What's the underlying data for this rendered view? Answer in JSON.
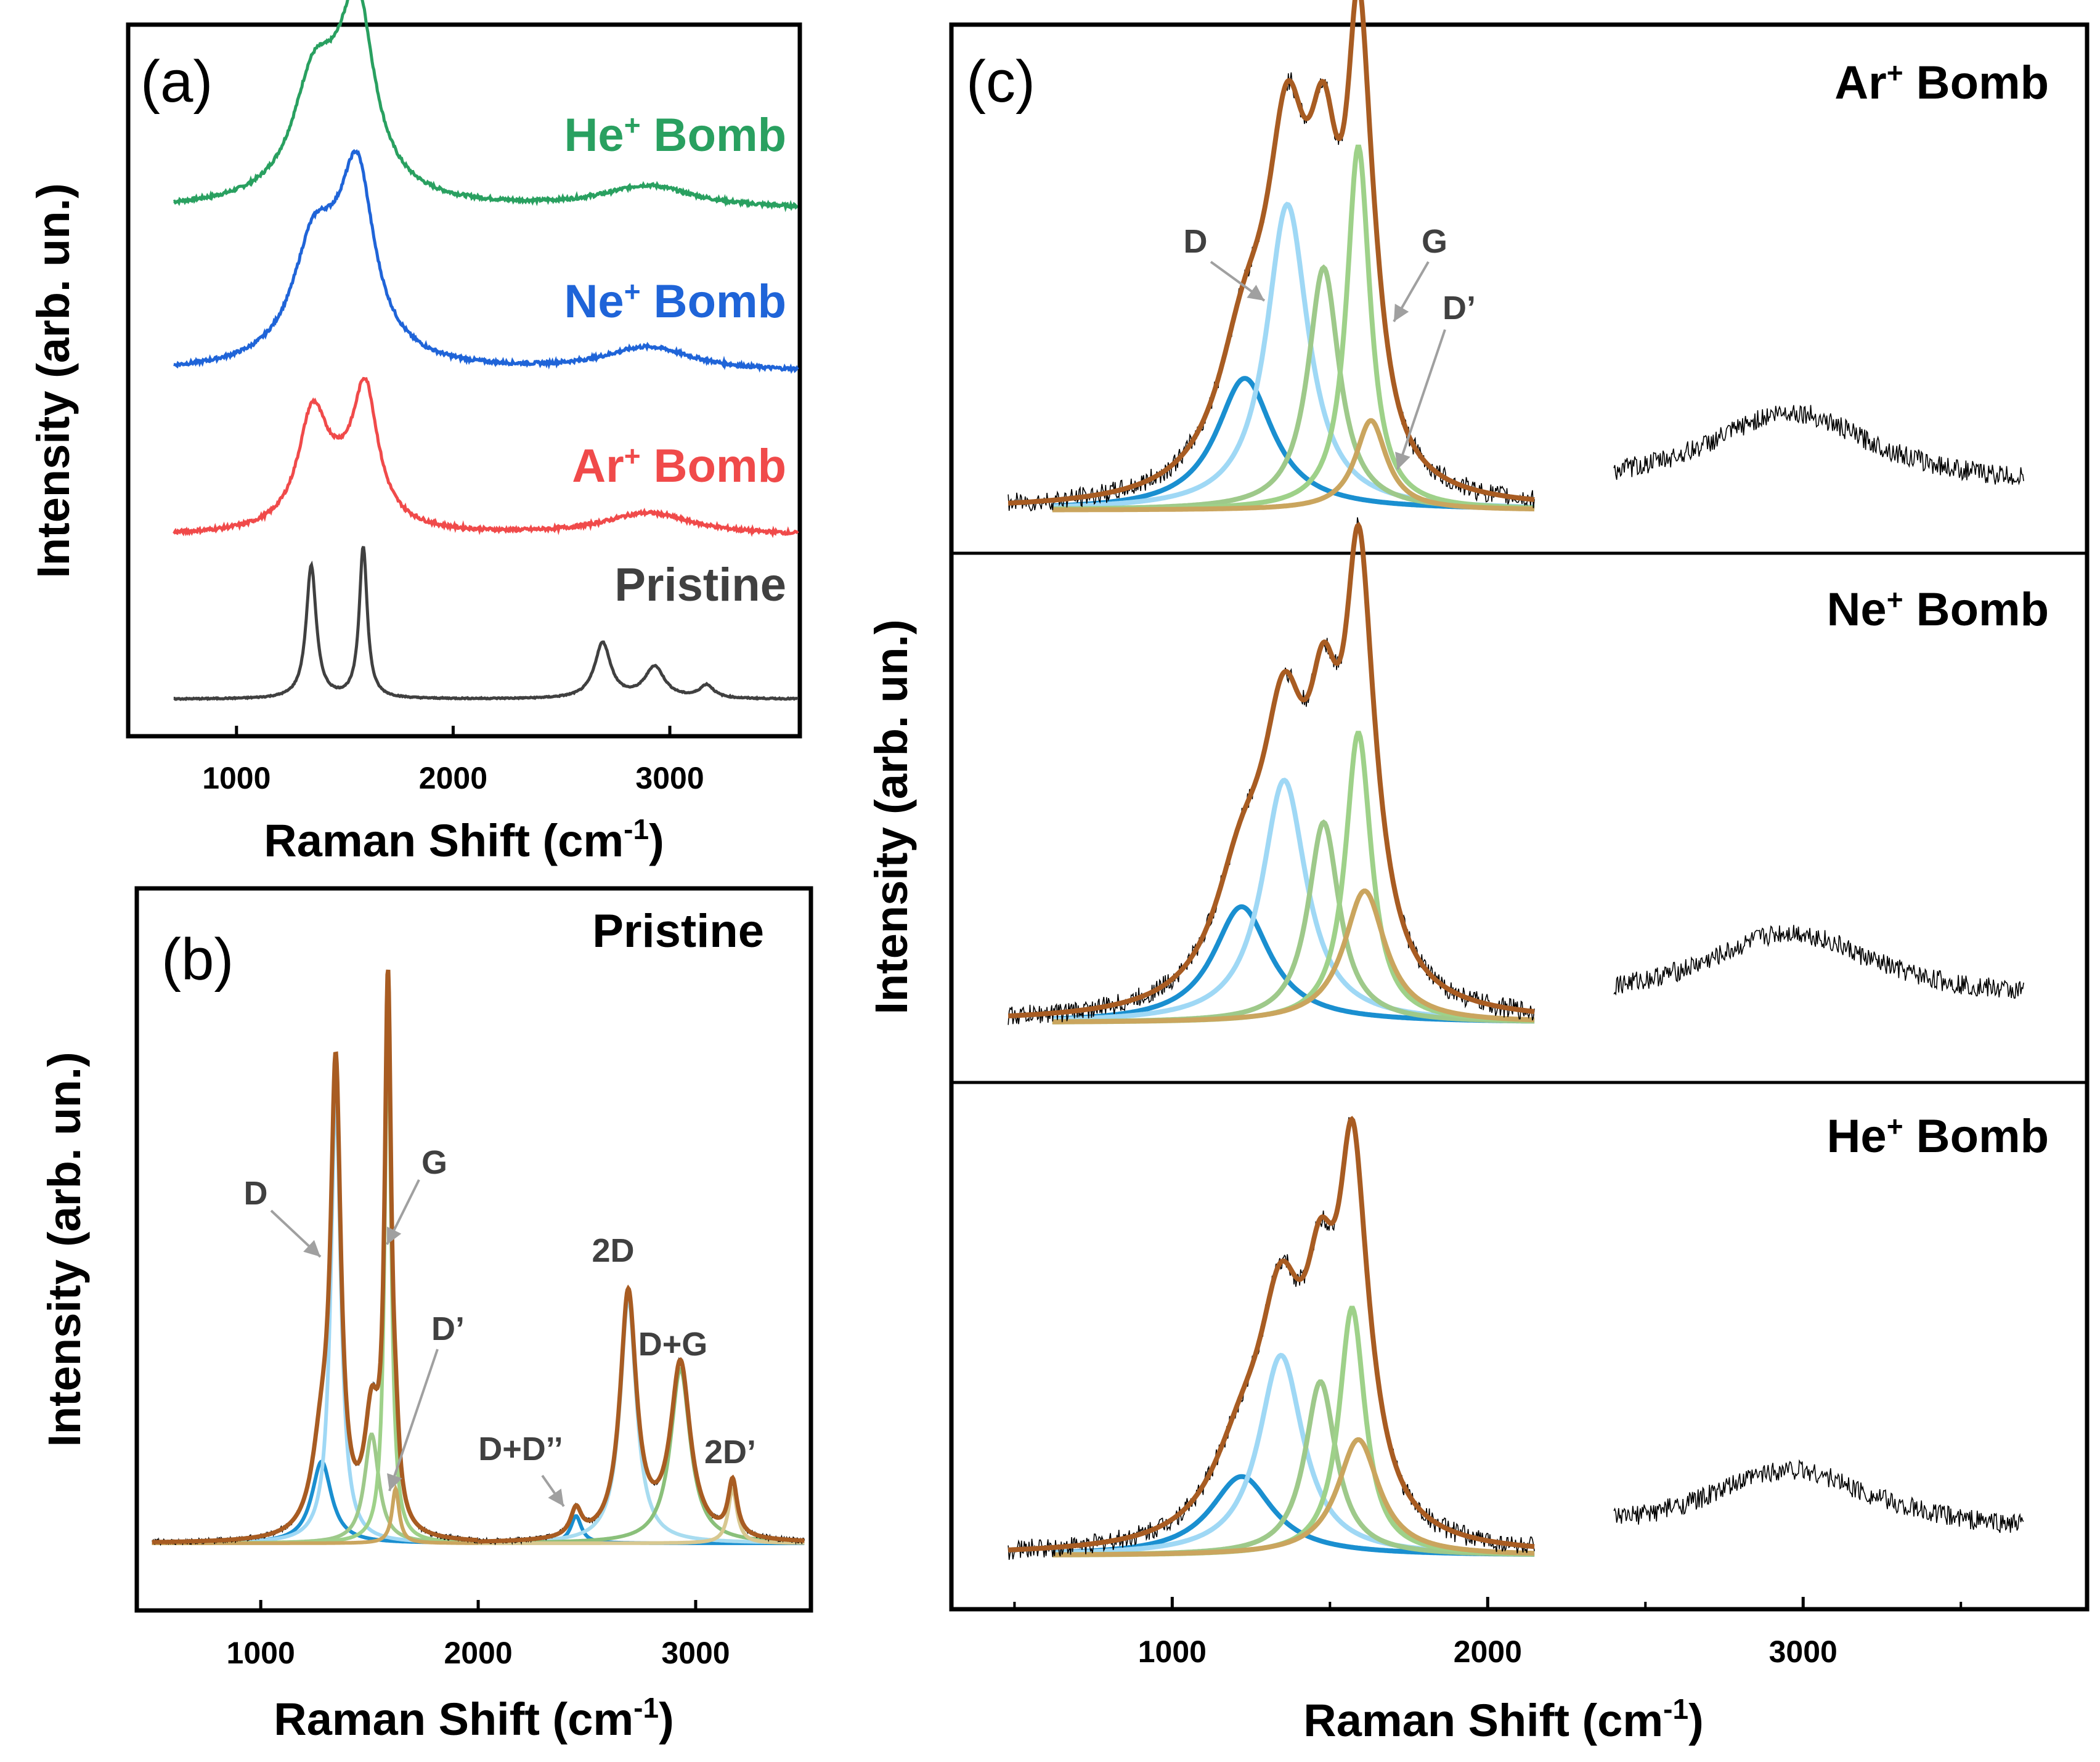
{
  "figure": {
    "panel_a_letter": "(a)",
    "panel_b_letter": "(b)",
    "panel_c_letter": "(c)",
    "y_axis_title": "Intensity (arb. un.)",
    "x_axis_title_main": "Raman Shift (cm",
    "x_axis_title_sup": "-1",
    "x_axis_title_end": ")"
  },
  "colors": {
    "pristine": "#404040",
    "ar": "#f04a4a",
    "ne": "#1f64d8",
    "he": "#29a060",
    "fit_total": "#a85c22",
    "D_low": "#1a8fd0",
    "D": "#9fd8f5",
    "D_pp": "#9ec98a",
    "G": "#9ed189",
    "Dprime": "#caa55e",
    "twoD": "#a8dcf0",
    "DG": "#8ac07a",
    "twoDprime": "#d8c890",
    "raw": "#555555",
    "arrow": "#a0a0a0"
  },
  "chart_data": [
    {
      "panel": "a",
      "type": "line",
      "xlabel": "Raman Shift (cm-1)",
      "ylabel": "Intensity (arb. un.)",
      "xlim": [
        500,
        3600
      ],
      "xticks": [
        "1000",
        "2000",
        "3000"
      ],
      "series": [
        {
          "name": "He+ Bomb",
          "label_main": "He",
          "label_sup": "+",
          "label_end": " Bomb",
          "offset": 3.0,
          "peaks": [
            [
              1350,
              0.45,
              110
            ],
            [
              1560,
              0.85,
              90
            ],
            [
              1460,
              0.35,
              180
            ],
            [
              2900,
              0.12,
              250
            ]
          ]
        },
        {
          "name": "Ne+ Bomb",
          "label_main": "Ne",
          "label_sup": "+",
          "label_end": " Bomb",
          "offset": 2.0,
          "peaks": [
            [
              1350,
              0.45,
              110
            ],
            [
              1560,
              0.82,
              90
            ],
            [
              1460,
              0.35,
              180
            ],
            [
              2900,
              0.13,
              250
            ]
          ]
        },
        {
          "name": "Ar+ Bomb",
          "label_main": "Ar",
          "label_sup": "+",
          "label_end": " Bomb",
          "offset": 1.0,
          "peaks": [
            [
              1350,
              0.55,
              80
            ],
            [
              1595,
              0.68,
              70
            ],
            [
              1470,
              0.2,
              150
            ],
            [
              2900,
              0.12,
              250
            ]
          ]
        },
        {
          "name": "Pristine",
          "label_main": "Pristine",
          "label_sup": "",
          "label_end": "",
          "offset": 0.0,
          "peaks": [
            [
              1345,
              0.72,
              28
            ],
            [
              1585,
              0.82,
              22
            ],
            [
              2690,
              0.3,
              45
            ],
            [
              2930,
              0.17,
              55
            ],
            [
              3170,
              0.07,
              40
            ]
          ]
        }
      ]
    },
    {
      "panel": "b",
      "type": "line",
      "title": "Pristine",
      "xlabel": "Raman Shift (cm-1)",
      "ylabel": "Intensity (arb. un.)",
      "xlim": [
        430,
        3530
      ],
      "xticks": [
        "1000",
        "2000",
        "3000"
      ],
      "components": [
        {
          "name": "D_low",
          "center": 1280,
          "height": 0.15,
          "width": 55
        },
        {
          "name": "D",
          "center": 1345,
          "height": 0.82,
          "width": 28
        },
        {
          "name": "D_pp",
          "center": 1510,
          "height": 0.2,
          "width": 40
        },
        {
          "name": "G",
          "center": 1585,
          "height": 0.97,
          "width": 18
        },
        {
          "name": "Dprime",
          "center": 1620,
          "height": 0.1,
          "width": 20
        },
        {
          "name": "D+D''",
          "center": 2450,
          "height": 0.05,
          "width": 30
        },
        {
          "name": "2D",
          "center": 2690,
          "height": 0.45,
          "width": 45
        },
        {
          "name": "D+G",
          "center": 2930,
          "height": 0.32,
          "width": 55
        },
        {
          "name": "2D'",
          "center": 3170,
          "height": 0.1,
          "width": 25
        }
      ],
      "annotations": [
        "D",
        "G",
        "D’",
        "2D",
        "D+G",
        "D+D’’",
        "2D’"
      ]
    },
    {
      "panel": "c",
      "type": "line",
      "xlabel": "Raman Shift (cm-1)",
      "ylabel": "Intensity (arb. un.)",
      "xlim": [
        300,
        3900
      ],
      "xticks": [
        "1000",
        "2000",
        "3000"
      ],
      "subpanels": [
        {
          "name": "Ar+ Bomb",
          "label_main": "Ar",
          "label_sup": "+",
          "label_end": " Bomb",
          "components": [
            [
              1230,
              0.25,
              110
            ],
            [
              1365,
              0.58,
              80
            ],
            [
              1480,
              0.46,
              60
            ],
            [
              1590,
              0.69,
              45
            ],
            [
              1630,
              0.17,
              60
            ]
          ],
          "hump": [
            2960,
            0.2,
            320
          ],
          "annotations": [
            "D",
            "G",
            "D’"
          ]
        },
        {
          "name": "Ne+ Bomb",
          "label_main": "Ne",
          "label_sup": "+",
          "label_end": " Bomb",
          "components": [
            [
              1220,
              0.22,
              110
            ],
            [
              1355,
              0.46,
              85
            ],
            [
              1480,
              0.38,
              60
            ],
            [
              1590,
              0.55,
              50
            ],
            [
              1610,
              0.25,
              80
            ]
          ],
          "hump": [
            2960,
            0.18,
            320
          ],
          "annotations": []
        },
        {
          "name": "He+ Bomb",
          "label_main": "He",
          "label_sup": "+",
          "label_end": " Bomb",
          "components": [
            [
              1220,
              0.15,
              120
            ],
            [
              1345,
              0.38,
              85
            ],
            [
              1470,
              0.33,
              60
            ],
            [
              1570,
              0.47,
              50
            ],
            [
              1590,
              0.22,
              80
            ]
          ],
          "hump": [
            2960,
            0.17,
            320
          ],
          "annotations": []
        }
      ]
    }
  ]
}
